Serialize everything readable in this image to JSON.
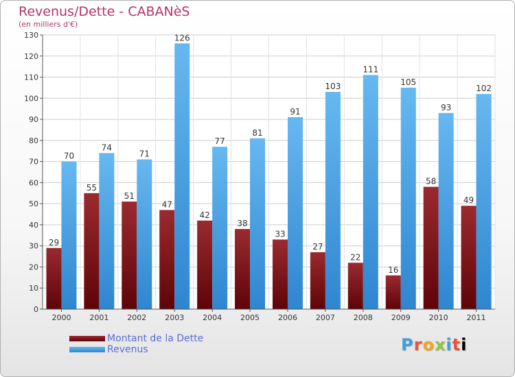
{
  "chart_data": {
    "type": "bar",
    "title": "Revenus/Dette - CABANèS",
    "subtitle": "(en milliers d'€)",
    "categories": [
      "2000",
      "2001",
      "2002",
      "2003",
      "2004",
      "2005",
      "2006",
      "2007",
      "2008",
      "2009",
      "2010",
      "2011"
    ],
    "series": [
      {
        "name": "Montant de la Dette",
        "color": "#7a0e12",
        "values": [
          29,
          55,
          51,
          47,
          42,
          38,
          33,
          27,
          22,
          16,
          58,
          49
        ]
      },
      {
        "name": "Revenus",
        "color": "#3d9be2",
        "values": [
          70,
          74,
          71,
          126,
          77,
          81,
          91,
          103,
          111,
          105,
          93,
          102
        ]
      }
    ],
    "ylim": [
      0,
      130
    ],
    "yticks": [
      0,
      10,
      20,
      30,
      40,
      50,
      60,
      70,
      80,
      90,
      100,
      110,
      120,
      130
    ],
    "grid": true,
    "legend": "bottom-left"
  },
  "logo": {
    "letters": [
      "P",
      "r",
      "o",
      "x",
      "i",
      "t",
      "i"
    ]
  }
}
